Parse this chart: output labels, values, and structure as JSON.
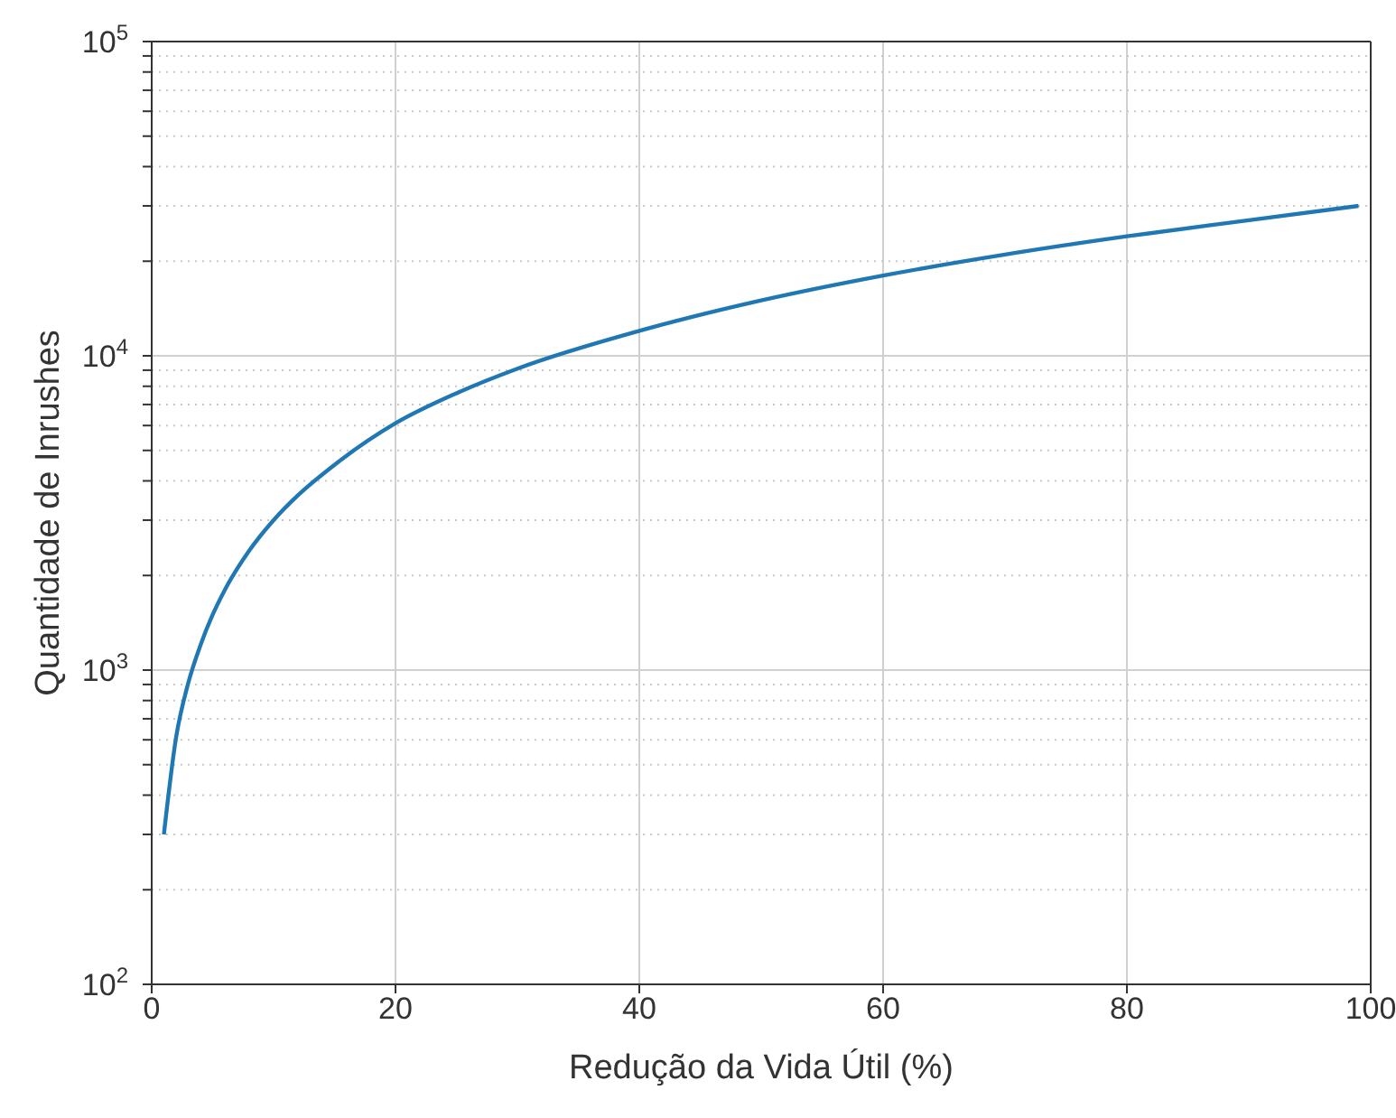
{
  "chart_data": {
    "type": "line",
    "xlabel": "Redução da Vida Útil (%)",
    "ylabel": "Quantidade de Inrushes",
    "x": [
      1,
      2,
      3,
      4,
      5,
      6,
      8,
      10,
      12,
      15,
      20,
      25,
      30,
      40,
      50,
      60,
      70,
      80,
      90,
      99
    ],
    "series": [
      {
        "color": "#1f77b4",
        "values": [
          300,
          610,
          910,
          1200,
          1500,
          1800,
          2400,
          3000,
          3600,
          4500,
          6100,
          7600,
          9100,
          12000,
          15000,
          18000,
          21000,
          24000,
          27000,
          30000
        ]
      }
    ],
    "log": "y",
    "grid": true,
    "marker": "none",
    "line_style": "solid",
    "xlim": [
      0,
      100
    ],
    "xticks": [
      0,
      20,
      40,
      60,
      80,
      100
    ],
    "ylim": [
      100,
      100000
    ],
    "yticks": [
      {
        "value": 100,
        "label": "10$^{2}$"
      },
      {
        "value": 200,
        "label": null
      },
      {
        "value": 300,
        "label": null
      },
      {
        "value": 400,
        "label": null
      },
      {
        "value": 500,
        "label": null
      },
      {
        "value": 600,
        "label": null
      },
      {
        "value": 700,
        "label": null
      },
      {
        "value": 800,
        "label": null
      },
      {
        "value": 900,
        "label": null
      },
      {
        "value": 1000,
        "label": "10$^{3}$"
      },
      {
        "value": 2000,
        "label": null
      },
      {
        "value": 3000,
        "label": null
      },
      {
        "value": 4000,
        "label": null
      },
      {
        "value": 5000,
        "label": null
      },
      {
        "value": 6000,
        "label": null
      },
      {
        "value": 7000,
        "label": null
      },
      {
        "value": 8000,
        "label": null
      },
      {
        "value": 9000,
        "label": null
      },
      {
        "value": 10000,
        "label": "10$^{4}$"
      },
      {
        "value": 20000,
        "label": null
      },
      {
        "value": 30000,
        "label": null
      },
      {
        "value": 40000,
        "label": null
      },
      {
        "value": 50000,
        "label": null
      },
      {
        "value": 60000,
        "label": null
      },
      {
        "value": 70000,
        "label": null
      },
      {
        "value": 80000,
        "label": null
      },
      {
        "value": 90000,
        "label": null
      },
      {
        "value": 100000,
        "label": "10$^{5}$"
      }
    ]
  }
}
